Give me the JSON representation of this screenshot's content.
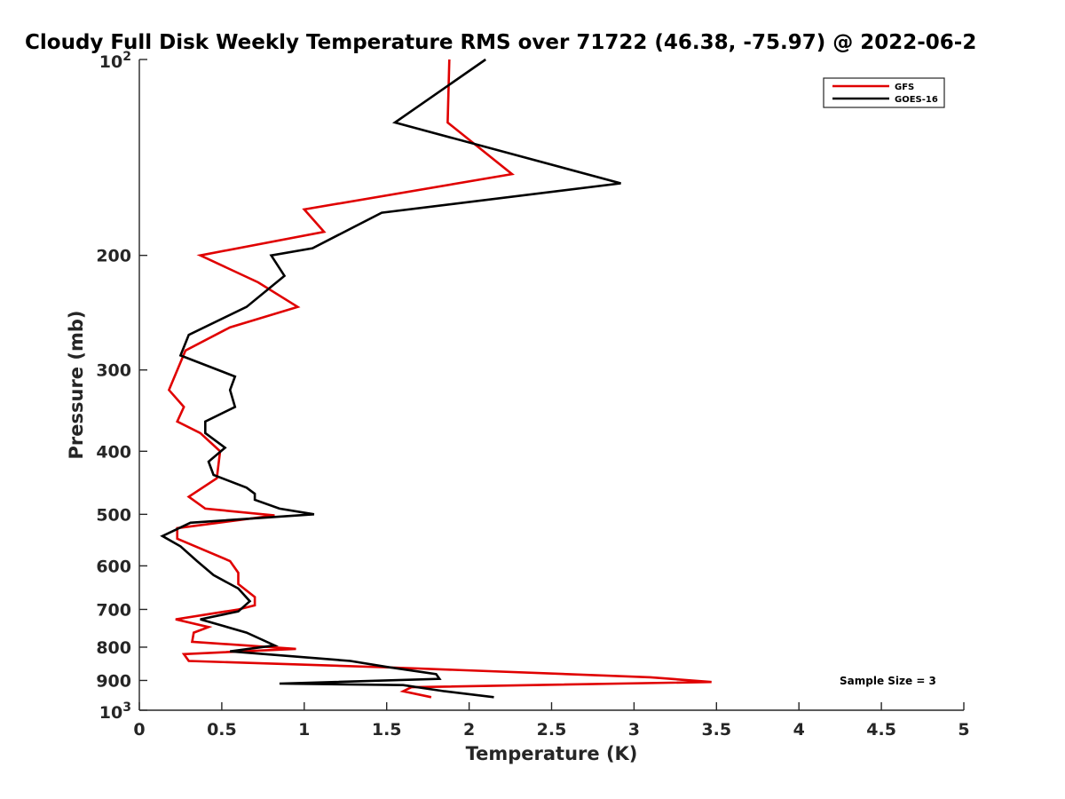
{
  "chart_data": {
    "type": "line",
    "title": "Cloudy Full Disk Weekly Temperature RMS over 71722 (46.38, -75.97) @ 2022-06-2",
    "xlabel": "Temperature (K)",
    "ylabel": "Pressure (mb)",
    "xlim": [
      0,
      5
    ],
    "ylim": [
      100,
      1000
    ],
    "y_scale": "log",
    "y_reversed": true,
    "grid": false,
    "legend_position": "top-right",
    "x_ticks": [
      "0",
      "0.5",
      "1",
      "1.5",
      "2",
      "2.5",
      "3",
      "3.5",
      "4",
      "4.5",
      "5"
    ],
    "x_tick_values": [
      0,
      0.5,
      1,
      1.5,
      2,
      2.5,
      3,
      3.5,
      4,
      4.5,
      5
    ],
    "y_ticks": [
      {
        "value": 100,
        "base": "10",
        "exp": "2"
      },
      {
        "value": 200,
        "label": "200"
      },
      {
        "value": 300,
        "label": "300"
      },
      {
        "value": 400,
        "label": "400"
      },
      {
        "value": 500,
        "label": "500"
      },
      {
        "value": 600,
        "label": "600"
      },
      {
        "value": 700,
        "label": "700"
      },
      {
        "value": 800,
        "label": "800"
      },
      {
        "value": 900,
        "label": "900"
      },
      {
        "value": 1000,
        "base": "10",
        "exp": "3"
      }
    ],
    "annotation": "Sample Size = 3",
    "series": [
      {
        "name": "GFS",
        "color": "#e00000",
        "points": [
          [
            1.88,
            100
          ],
          [
            1.87,
            125
          ],
          [
            2.26,
            150
          ],
          [
            1.0,
            170
          ],
          [
            1.12,
            184
          ],
          [
            0.37,
            200
          ],
          [
            0.72,
            220
          ],
          [
            0.96,
            240
          ],
          [
            0.55,
            258
          ],
          [
            0.28,
            280
          ],
          [
            0.18,
            322
          ],
          [
            0.27,
            342
          ],
          [
            0.23,
            360
          ],
          [
            0.37,
            375
          ],
          [
            0.49,
            400
          ],
          [
            0.47,
            440
          ],
          [
            0.3,
            470
          ],
          [
            0.4,
            490
          ],
          [
            0.82,
            502
          ],
          [
            0.23,
            525
          ],
          [
            0.23,
            545
          ],
          [
            0.55,
            590
          ],
          [
            0.6,
            615
          ],
          [
            0.6,
            640
          ],
          [
            0.7,
            670
          ],
          [
            0.7,
            690
          ],
          [
            0.6,
            700
          ],
          [
            0.22,
            725
          ],
          [
            0.42,
            745
          ],
          [
            0.33,
            760
          ],
          [
            0.32,
            785
          ],
          [
            0.95,
            805
          ],
          [
            0.27,
            820
          ],
          [
            0.3,
            840
          ],
          [
            1.55,
            860
          ],
          [
            3.1,
            890
          ],
          [
            3.47,
            905
          ],
          [
            1.65,
            922
          ],
          [
            1.6,
            935
          ],
          [
            1.77,
            955
          ]
        ]
      },
      {
        "name": "GOES-16",
        "color": "#000000",
        "points": [
          [
            2.1,
            100
          ],
          [
            1.55,
            125
          ],
          [
            2.92,
            155
          ],
          [
            1.47,
            172
          ],
          [
            1.05,
            195
          ],
          [
            0.8,
            200
          ],
          [
            0.88,
            215
          ],
          [
            0.65,
            240
          ],
          [
            0.3,
            265
          ],
          [
            0.25,
            285
          ],
          [
            0.58,
            307
          ],
          [
            0.55,
            322
          ],
          [
            0.58,
            342
          ],
          [
            0.4,
            360
          ],
          [
            0.4,
            375
          ],
          [
            0.52,
            395
          ],
          [
            0.42,
            415
          ],
          [
            0.45,
            435
          ],
          [
            0.65,
            455
          ],
          [
            0.7,
            465
          ],
          [
            0.7,
            475
          ],
          [
            0.85,
            490
          ],
          [
            1.06,
            500
          ],
          [
            0.31,
            515
          ],
          [
            0.14,
            540
          ],
          [
            0.25,
            560
          ],
          [
            0.35,
            590
          ],
          [
            0.45,
            620
          ],
          [
            0.6,
            650
          ],
          [
            0.67,
            680
          ],
          [
            0.6,
            705
          ],
          [
            0.37,
            725
          ],
          [
            0.65,
            760
          ],
          [
            0.82,
            795
          ],
          [
            0.55,
            812
          ],
          [
            1.28,
            840
          ],
          [
            1.5,
            858
          ],
          [
            1.8,
            880
          ],
          [
            1.82,
            895
          ],
          [
            0.85,
            910
          ],
          [
            1.6,
            915
          ],
          [
            1.85,
            935
          ],
          [
            2.15,
            955
          ]
        ]
      }
    ]
  }
}
